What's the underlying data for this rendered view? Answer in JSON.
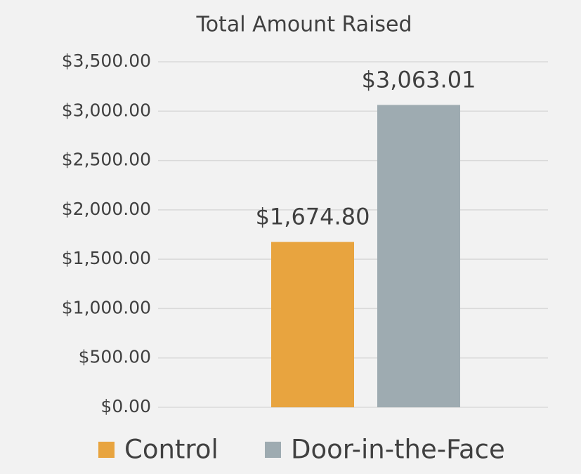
{
  "chart_data": {
    "type": "bar",
    "title": "Total Amount Raised",
    "categories": [
      null
    ],
    "series": [
      {
        "name": "Control",
        "color": "#e8a43f",
        "values": [
          1674.8
        ],
        "value_labels": [
          "$1,674.80"
        ]
      },
      {
        "name": "Door-in-the-Face",
        "color": "#9eabb1",
        "values": [
          3063.01
        ],
        "value_labels": [
          "$3,063.01"
        ]
      }
    ],
    "ylim": [
      0,
      3500
    ],
    "yticks": [
      {
        "value": 0,
        "label": "$0.00"
      },
      {
        "value": 500,
        "label": "$500.00"
      },
      {
        "value": 1000,
        "label": "$1,000.00"
      },
      {
        "value": 1500,
        "label": "$1,500.00"
      },
      {
        "value": 2000,
        "label": "$2,000.00"
      },
      {
        "value": 2500,
        "label": "$2,500.00"
      },
      {
        "value": 3000,
        "label": "$3,000.00"
      },
      {
        "value": 3500,
        "label": "$3,500.00"
      }
    ],
    "grid": true,
    "legend": "bottom"
  }
}
